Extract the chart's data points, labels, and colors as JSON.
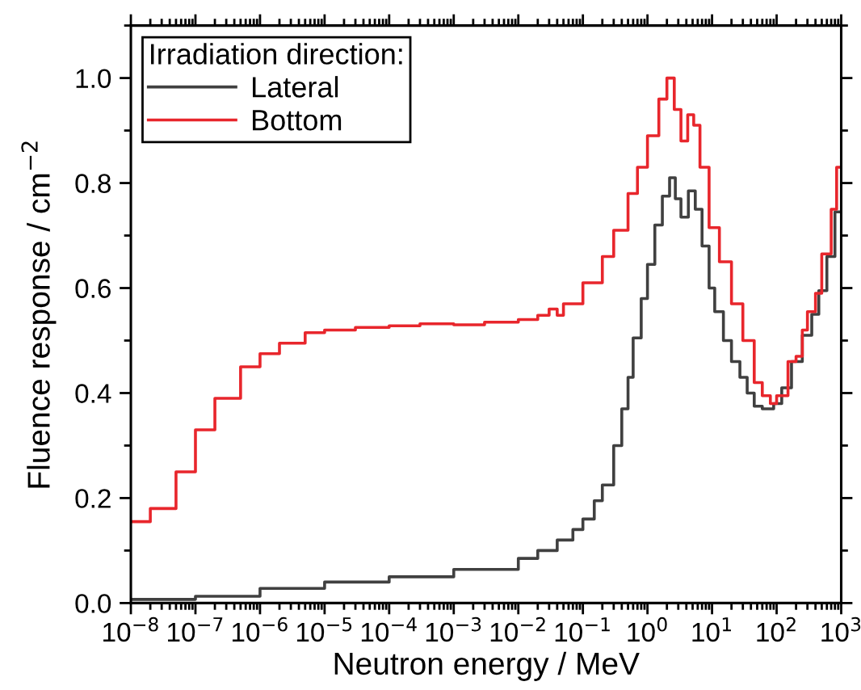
{
  "chart_data": {
    "type": "step",
    "xlabel": "Neutron energy / MeV",
    "ylabel": "Fluence response / cm$^{−2}$",
    "legend_title": "Irradiation direction:",
    "legend": "top left",
    "log": "x",
    "xlim": [
      1e-08,
      1000
    ],
    "ylim": [
      0,
      1.1
    ],
    "xticks": [
      {
        "value": 1e-08,
        "label": "10$^{−8}$"
      },
      {
        "value": 1e-07,
        "label": "10$^{−7}$"
      },
      {
        "value": 1e-06,
        "label": "10$^{−6}$"
      },
      {
        "value": 1e-05,
        "label": "10$^{−5}$"
      },
      {
        "value": 0.0001,
        "label": "10$^{−4}$"
      },
      {
        "value": 0.001,
        "label": "10$^{−3}$"
      },
      {
        "value": 0.01,
        "label": "10$^{−2}$"
      },
      {
        "value": 0.1,
        "label": "10$^{−1}$"
      },
      {
        "value": 1,
        "label": "10$^{0}$"
      },
      {
        "value": 10,
        "label": "10$^{1}$"
      },
      {
        "value": 100,
        "label": "10$^{2}$"
      },
      {
        "value": 1000,
        "label": "10$^{3}$"
      }
    ],
    "yticks": [
      {
        "value": 0,
        "label": "0.0"
      },
      {
        "value": 0.2,
        "label": "0.2"
      },
      {
        "value": 0.4,
        "label": "0.4"
      },
      {
        "value": 0.6,
        "label": "0.6"
      },
      {
        "value": 0.8,
        "label": "0.8"
      },
      {
        "value": 1.0,
        "label": "1.0"
      }
    ],
    "series": [
      {
        "name": "Lateral",
        "color": "#404040",
        "x": [
          1e-08,
          1e-07,
          1e-06,
          1e-05,
          0.0001,
          0.001,
          0.01,
          0.02,
          0.04,
          0.07,
          0.1,
          0.15,
          0.2,
          0.3,
          0.4,
          0.5,
          0.6,
          0.8,
          1,
          1.3,
          1.7,
          2.2,
          2.7,
          3.3,
          4.3,
          5.5,
          7,
          9,
          11,
          15,
          20,
          27,
          35,
          45,
          60,
          90,
          120,
          170,
          250,
          350,
          450,
          600,
          800,
          1000
        ],
        "values": [
          0.007,
          0.013,
          0.028,
          0.04,
          0.05,
          0.064,
          0.085,
          0.1,
          0.12,
          0.14,
          0.16,
          0.195,
          0.225,
          0.3,
          0.37,
          0.43,
          0.505,
          0.58,
          0.645,
          0.72,
          0.775,
          0.81,
          0.77,
          0.735,
          0.785,
          0.75,
          0.68,
          0.6,
          0.555,
          0.5,
          0.46,
          0.43,
          0.4,
          0.375,
          0.37,
          0.38,
          0.41,
          0.46,
          0.51,
          0.55,
          0.595,
          0.66,
          0.745,
          0.745
        ]
      },
      {
        "name": "Bottom",
        "color": "#e8262c",
        "x": [
          1e-08,
          2e-08,
          5e-08,
          1e-07,
          2e-07,
          5e-07,
          1e-06,
          2e-06,
          5e-06,
          1e-05,
          3e-05,
          0.0001,
          0.0003,
          0.001,
          0.003,
          0.01,
          0.02,
          0.03,
          0.04,
          0.05,
          0.1,
          0.2,
          0.3,
          0.5,
          0.7,
          1,
          1.5,
          2,
          2.6,
          3.3,
          4.2,
          5.2,
          6.5,
          9,
          13,
          20,
          30,
          45,
          60,
          80,
          100,
          150,
          200,
          250,
          300,
          400,
          500,
          700,
          850,
          1000
        ],
        "values": [
          0.155,
          0.18,
          0.25,
          0.33,
          0.39,
          0.45,
          0.475,
          0.495,
          0.515,
          0.52,
          0.525,
          0.528,
          0.532,
          0.53,
          0.535,
          0.54,
          0.548,
          0.56,
          0.548,
          0.57,
          0.61,
          0.66,
          0.71,
          0.78,
          0.83,
          0.89,
          0.96,
          1.0,
          0.94,
          0.88,
          0.93,
          0.91,
          0.83,
          0.715,
          0.65,
          0.57,
          0.5,
          0.42,
          0.395,
          0.38,
          0.395,
          0.46,
          0.47,
          0.52,
          0.555,
          0.59,
          0.665,
          0.75,
          0.83,
          0.83
        ]
      }
    ]
  }
}
